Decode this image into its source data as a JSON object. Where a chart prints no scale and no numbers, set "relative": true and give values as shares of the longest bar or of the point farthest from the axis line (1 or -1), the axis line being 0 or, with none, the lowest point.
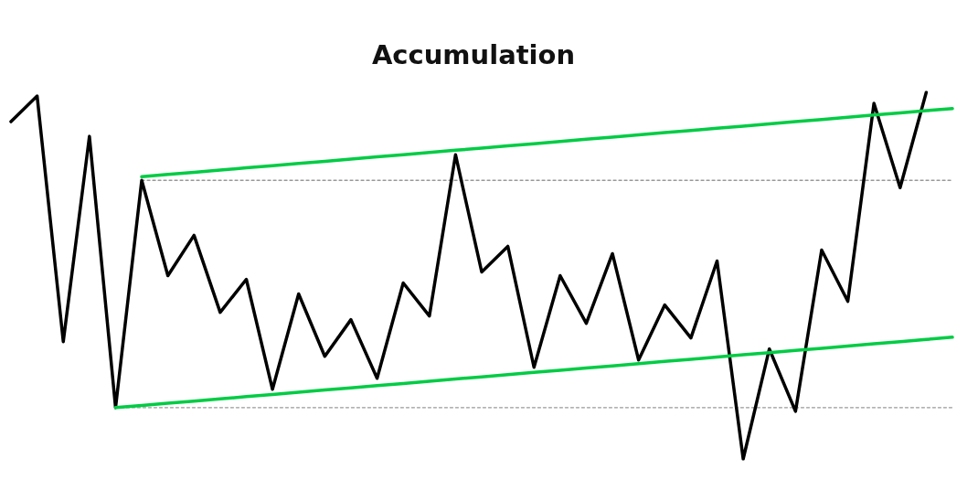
{
  "chart_data": {
    "type": "line",
    "title": "Accumulation",
    "relative": true,
    "categories": [
      null,
      null,
      null,
      null,
      null,
      null,
      null,
      null,
      null,
      null,
      null,
      null,
      null,
      null,
      null,
      null,
      null,
      null,
      null,
      null,
      null,
      null,
      null,
      null,
      null,
      null,
      null,
      null,
      null,
      null,
      null,
      null,
      null,
      null,
      null,
      null,
      null
    ],
    "series": [
      {
        "color": "#000000",
        "values": [
          0.92,
          0.99,
          0.32,
          0.88,
          0.14,
          0.76,
          0.5,
          0.61,
          0.4,
          0.49,
          0.19,
          0.45,
          0.28,
          0.38,
          0.22,
          0.48,
          0.39,
          0.83,
          0.51,
          0.58,
          0.25,
          0.5,
          0.37,
          0.56,
          0.27,
          0.42,
          0.33,
          0.54,
          0.0,
          0.3,
          0.13,
          0.57,
          0.43,
          0.97,
          0.74,
          1.0,
          null
        ]
      },
      {
        "color": "#999999",
        "line_style": "dotted",
        "values": [
          null,
          null,
          null,
          null,
          null,
          0.76,
          0.76,
          0.76,
          0.76,
          0.76,
          0.76,
          0.76,
          0.76,
          0.76,
          0.76,
          0.76,
          0.76,
          0.76,
          0.76,
          0.76,
          0.76,
          0.76,
          0.76,
          0.76,
          0.76,
          0.76,
          0.76,
          0.76,
          0.76,
          0.76,
          0.76,
          0.76,
          0.76,
          0.76,
          0.76,
          0.76,
          0.76
        ]
      },
      {
        "color": "#999999",
        "line_style": "dotted",
        "values": [
          null,
          null,
          null,
          null,
          0.14,
          0.14,
          0.14,
          0.14,
          0.14,
          0.14,
          0.14,
          0.14,
          0.14,
          0.14,
          0.14,
          0.14,
          0.14,
          0.14,
          0.14,
          0.14,
          0.14,
          0.14,
          0.14,
          0.14,
          0.14,
          0.14,
          0.14,
          0.14,
          0.14,
          0.14,
          0.14,
          0.14,
          0.14,
          0.14,
          0.14,
          0.14,
          0.14
        ]
      },
      {
        "color": "#00cc44",
        "values": [
          null,
          null,
          null,
          null,
          null,
          0.77,
          0.776,
          0.782,
          0.788,
          0.794,
          0.8,
          0.806,
          0.812,
          0.818,
          0.824,
          0.83,
          0.836,
          0.842,
          0.848,
          0.854,
          0.86,
          0.866,
          0.872,
          0.878,
          0.884,
          0.89,
          0.896,
          0.902,
          0.908,
          0.914,
          0.92,
          0.926,
          0.932,
          0.938,
          0.944,
          0.95,
          0.956
        ]
      },
      {
        "color": "#00cc44",
        "values": [
          null,
          null,
          null,
          null,
          0.14,
          0.146,
          0.152,
          0.158,
          0.164,
          0.17,
          0.176,
          0.182,
          0.188,
          0.194,
          0.2,
          0.206,
          0.212,
          0.218,
          0.224,
          0.23,
          0.236,
          0.242,
          0.248,
          0.254,
          0.26,
          0.266,
          0.272,
          0.278,
          0.284,
          0.29,
          0.296,
          0.302,
          0.308,
          0.314,
          0.32,
          0.326,
          0.332
        ]
      }
    ]
  }
}
